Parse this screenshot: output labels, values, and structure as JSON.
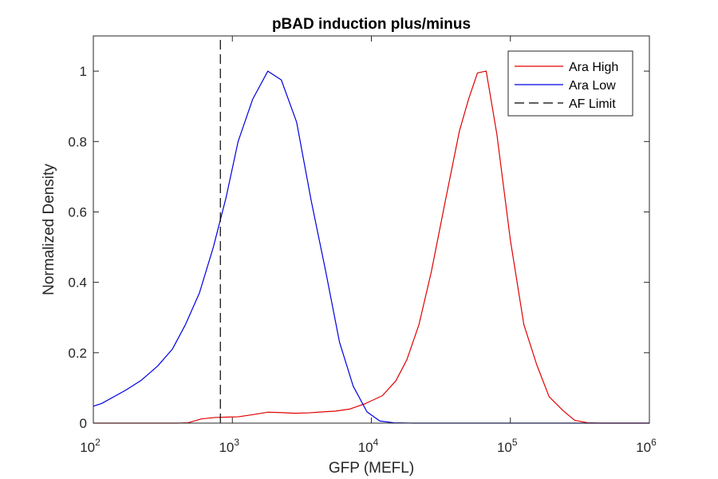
{
  "chart_data": {
    "type": "line",
    "title": "pBAD induction plus/minus",
    "xlabel": "GFP (MEFL)",
    "ylabel": "Normalized Density",
    "x_scale": "log",
    "xlim": [
      100,
      1000000
    ],
    "ylim": [
      0,
      1.1
    ],
    "x_ticks": [
      100,
      1000,
      10000,
      100000,
      1000000
    ],
    "x_tick_labels": [
      {
        "base": "10",
        "exp": "2"
      },
      {
        "base": "10",
        "exp": "3"
      },
      {
        "base": "10",
        "exp": "4"
      },
      {
        "base": "10",
        "exp": "5"
      },
      {
        "base": "10",
        "exp": "6"
      }
    ],
    "y_ticks": [
      0,
      0.2,
      0.4,
      0.6,
      0.8,
      1
    ],
    "y_tick_labels": [
      "0",
      "0.2",
      "0.4",
      "0.6",
      "0.8",
      "1"
    ],
    "grid": false,
    "legend_position": "top-right",
    "series": [
      {
        "name": "Ara High",
        "color": "#e00000",
        "style": "solid",
        "x": [
          100,
          200,
          400,
          480,
          600,
          750,
          900,
          1100,
          1400,
          1800,
          2200,
          2800,
          3500,
          4500,
          5500,
          7000,
          9000,
          12000,
          15000,
          18000,
          22000,
          27000,
          34000,
          43000,
          50000,
          58000,
          67000,
          80000,
          100000,
          125000,
          155000,
          190000,
          240000,
          290000,
          360000,
          450000,
          600000,
          1000000
        ],
        "y": [
          0,
          0,
          0,
          0.001,
          0.012,
          0.016,
          0.017,
          0.018,
          0.024,
          0.031,
          0.03,
          0.028,
          0.029,
          0.032,
          0.034,
          0.04,
          0.055,
          0.078,
          0.12,
          0.18,
          0.28,
          0.43,
          0.63,
          0.83,
          0.92,
          0.995,
          1.0,
          0.82,
          0.52,
          0.28,
          0.165,
          0.075,
          0.035,
          0.008,
          0.001,
          0,
          0,
          0
        ]
      },
      {
        "name": "Ara Low",
        "color": "#0000e0",
        "style": "solid",
        "x": [
          100,
          115,
          170,
          220,
          290,
          370,
          460,
          580,
          730,
          900,
          1100,
          1400,
          1800,
          2250,
          2900,
          3700,
          4700,
          5900,
          7400,
          9300,
          11500,
          14500,
          20000,
          50000,
          100000,
          1000000
        ],
        "y": [
          0.048,
          0.056,
          0.093,
          0.121,
          0.162,
          0.21,
          0.28,
          0.37,
          0.5,
          0.64,
          0.8,
          0.92,
          1.0,
          0.975,
          0.855,
          0.63,
          0.43,
          0.23,
          0.105,
          0.032,
          0.006,
          0.001,
          0,
          0,
          0,
          0
        ]
      },
      {
        "name": "AF Limit",
        "color": "#000000",
        "style": "dashed",
        "x": [
          820,
          820
        ],
        "y": [
          0,
          1.1
        ]
      }
    ]
  }
}
